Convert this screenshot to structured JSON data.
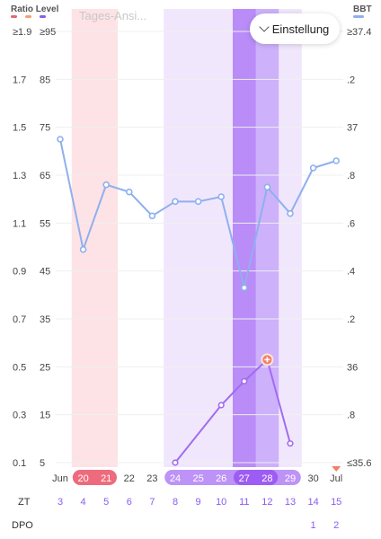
{
  "header": {
    "left_title": "Ratio Level",
    "right_title": "BBT",
    "legend_colors": [
      "#e06a6a",
      "#f4a071",
      "#8a5cf0"
    ],
    "bbt_color": "#8fb0ee",
    "faded_title": "Tages-Ansi..."
  },
  "settings": {
    "label": "Einstellung",
    "icon": "chevron-down-icon"
  },
  "axes": {
    "ratio_ticks": [
      "≥1.9",
      "1.7",
      "1.5",
      "1.3",
      "1.1",
      "0.9",
      "0.7",
      "0.5",
      "0.3",
      "0.1"
    ],
    "level_ticks": [
      "≥95",
      "85",
      "75",
      "65",
      "55",
      "45",
      "35",
      "25",
      "15",
      "5"
    ],
    "bbt_ticks": [
      "≥37.4",
      ".2",
      "37",
      ".8",
      ".6",
      ".4",
      ".2",
      "36",
      ".8",
      "≤35.6"
    ]
  },
  "rows": {
    "zt_label": "ZT",
    "dpo_label": "DPO"
  },
  "dates": [
    "Jun",
    "20",
    "21",
    "22",
    "23",
    "24",
    "25",
    "26",
    "27",
    "28",
    "29",
    "30",
    "Jul"
  ],
  "zt": [
    "3",
    "4",
    "5",
    "6",
    "7",
    "8",
    "9",
    "10",
    "11",
    "12",
    "13",
    "14",
    "15"
  ],
  "dpo": [
    "",
    "",
    "",
    "",
    "",
    "",
    "",
    "",
    "",
    "",
    "",
    "1",
    "2"
  ],
  "colors": {
    "period_band": "#fde2e6",
    "period_date_bg": "#ee6b7d",
    "fertile_band": "#f1e7fd",
    "peak_band": "#cdb1fb",
    "peak_band_deep": "#b98cf8",
    "fertile_date_bg": "#bd93f7",
    "peak_date_bg": "#9d5cf4",
    "bbt_line": "#8fb0ee",
    "lh_line": "#a16cf0",
    "lh_peak_marker": "#f08066",
    "today_marker": "#f08066"
  },
  "chart_data": {
    "type": "line",
    "x": [
      "Jun 19",
      "Jun 20",
      "Jun 21",
      "Jun 22",
      "Jun 23",
      "Jun 24",
      "Jun 25",
      "Jun 26",
      "Jun 27",
      "Jun 28",
      "Jun 29",
      "Jun 30",
      "Jul 1"
    ],
    "period_days": [
      "Jun 20",
      "Jun 21"
    ],
    "fertile_days": [
      "Jun 24",
      "Jun 25",
      "Jun 26",
      "Jun 27",
      "Jun 28",
      "Jun 29"
    ],
    "peak_days": [
      "Jun 27",
      "Jun 28"
    ],
    "series": [
      {
        "name": "BBT",
        "axis": "right",
        "values": [
          36.95,
          36.49,
          36.76,
          36.73,
          36.63,
          36.69,
          36.69,
          36.71,
          36.33,
          36.75,
          36.64,
          36.83,
          36.86
        ]
      },
      {
        "name": "Ratio Level",
        "axis": "left",
        "values": [
          null,
          null,
          null,
          null,
          null,
          0.1,
          null,
          0.34,
          0.44,
          0.53,
          0.18,
          null,
          null
        ]
      }
    ],
    "ylim_left": [
      0.1,
      1.9
    ],
    "ylim_right": [
      35.6,
      37.4
    ]
  }
}
